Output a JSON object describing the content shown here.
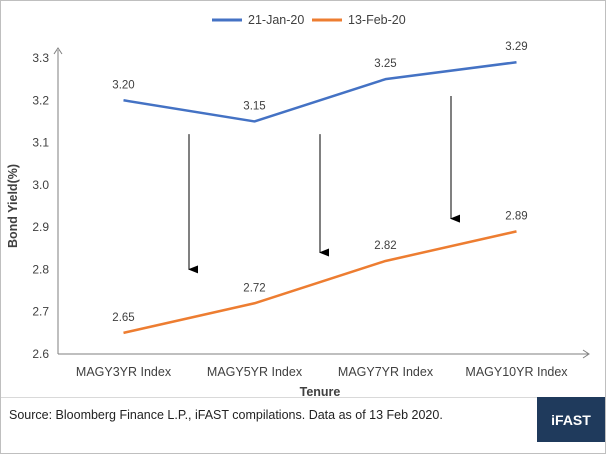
{
  "chart_data": {
    "type": "line",
    "categories": [
      "MAGY3YR Index",
      "MAGY5YR Index",
      "MAGY7YR Index",
      "MAGY10YR Index"
    ],
    "series": [
      {
        "name": "21-Jan-20",
        "values": [
          3.2,
          3.15,
          3.25,
          3.29
        ],
        "labels": [
          "3.20",
          "3.15",
          "3.25",
          "3.29"
        ],
        "color": "#4472c4"
      },
      {
        "name": "13-Feb-20",
        "values": [
          2.65,
          2.72,
          2.82,
          2.89
        ],
        "labels": [
          "2.65",
          "2.72",
          "2.82",
          "2.89"
        ],
        "color": "#ed7d31"
      }
    ],
    "xlabel": "Tenure",
    "ylabel": "Bond Yield(%)",
    "ylim": [
      2.6,
      3.3
    ],
    "yticks": [
      "2.6",
      "2.7",
      "2.8",
      "2.9",
      "3.0",
      "3.1",
      "3.2",
      "3.3"
    ],
    "grid": false,
    "legend_position": "top",
    "annotations": [
      {
        "type": "arrow",
        "from_y": 3.12,
        "to_y": 2.8,
        "between": [
          "MAGY3YR Index",
          "MAGY5YR Index"
        ]
      },
      {
        "type": "arrow",
        "from_y": 3.12,
        "to_y": 2.84,
        "between": [
          "MAGY5YR Index",
          "MAGY7YR Index"
        ]
      },
      {
        "type": "arrow",
        "from_y": 3.21,
        "to_y": 2.92,
        "between": [
          "MAGY7YR Index",
          "MAGY10YR Index"
        ]
      }
    ]
  },
  "footer": {
    "source": "Source: Bloomberg Finance L.P., iFAST compilations. Data as of 13 Feb 2020.",
    "logo": "iFAST"
  }
}
